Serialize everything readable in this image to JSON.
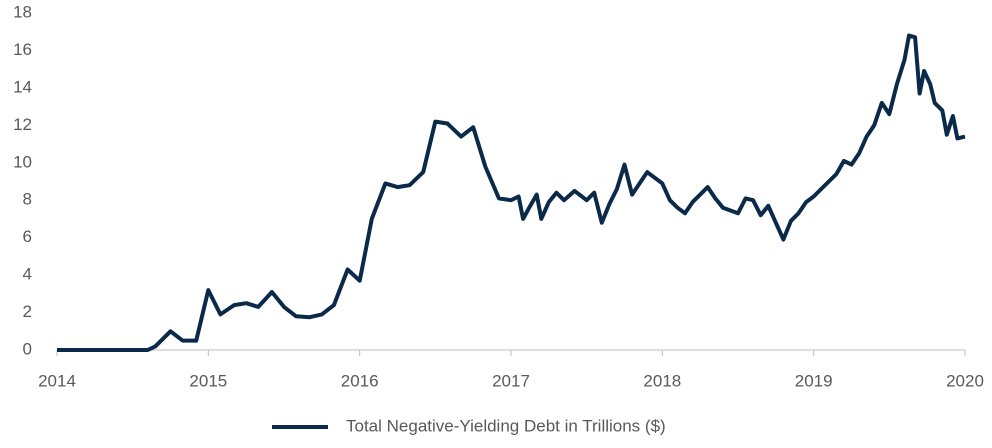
{
  "chart_data": {
    "type": "line",
    "x": [
      2014.0,
      2014.3,
      2014.4,
      2014.6,
      2014.65,
      2014.75,
      2014.83,
      2014.92,
      2015.0,
      2015.08,
      2015.17,
      2015.25,
      2015.33,
      2015.42,
      2015.5,
      2015.58,
      2015.67,
      2015.75,
      2015.83,
      2015.92,
      2016.0,
      2016.08,
      2016.17,
      2016.25,
      2016.33,
      2016.42,
      2016.5,
      2016.58,
      2016.67,
      2016.75,
      2016.83,
      2016.92,
      2017.0,
      2017.05,
      2017.08,
      2017.12,
      2017.17,
      2017.2,
      2017.25,
      2017.3,
      2017.35,
      2017.42,
      2017.5,
      2017.55,
      2017.6,
      2017.65,
      2017.7,
      2017.75,
      2017.8,
      2017.85,
      2017.9,
      2017.95,
      2018.0,
      2018.05,
      2018.1,
      2018.15,
      2018.2,
      2018.25,
      2018.3,
      2018.35,
      2018.4,
      2018.5,
      2018.55,
      2018.6,
      2018.65,
      2018.7,
      2018.75,
      2018.8,
      2018.85,
      2018.9,
      2018.95,
      2019.0,
      2019.05,
      2019.1,
      2019.15,
      2019.2,
      2019.25,
      2019.3,
      2019.35,
      2019.4,
      2019.45,
      2019.5,
      2019.55,
      2019.6,
      2019.63,
      2019.67,
      2019.7,
      2019.73,
      2019.77,
      2019.8,
      2019.85,
      2019.88,
      2019.92,
      2019.95,
      2020.0
    ],
    "series": [
      {
        "name": "Total Negative-Yielding Debt in Trillions ($)",
        "color": "#0b2a4a",
        "values": [
          0,
          0,
          0,
          0,
          0.2,
          1.0,
          0.5,
          0.5,
          3.2,
          1.9,
          2.4,
          2.5,
          2.3,
          3.1,
          2.3,
          1.8,
          1.75,
          1.9,
          2.4,
          4.3,
          3.7,
          7.0,
          8.9,
          8.7,
          8.8,
          9.5,
          12.2,
          12.1,
          11.4,
          11.9,
          9.8,
          8.1,
          8.0,
          8.2,
          7.0,
          7.6,
          8.3,
          7.0,
          7.9,
          8.4,
          8.0,
          8.5,
          8.0,
          8.4,
          6.8,
          7.8,
          8.6,
          9.9,
          8.3,
          8.9,
          9.5,
          9.2,
          8.9,
          8.0,
          7.6,
          7.3,
          7.9,
          8.3,
          8.7,
          8.1,
          7.6,
          7.3,
          8.1,
          8.0,
          7.2,
          7.7,
          6.8,
          5.9,
          6.9,
          7.3,
          7.9,
          8.2,
          8.6,
          9.0,
          9.4,
          10.1,
          9.9,
          10.5,
          11.4,
          12.0,
          13.2,
          12.6,
          14.2,
          15.5,
          16.8,
          16.7,
          13.7,
          14.9,
          14.2,
          13.2,
          12.8,
          11.5,
          12.5,
          11.3,
          11.4
        ]
      }
    ],
    "xlim": [
      2014,
      2020
    ],
    "xticks": [
      2014,
      2015,
      2016,
      2017,
      2018,
      2019,
      2020
    ],
    "ylim": [
      0,
      18
    ],
    "yticks": [
      0,
      2,
      4,
      6,
      8,
      10,
      12,
      14,
      16,
      18
    ],
    "grid": false,
    "legend": "bottom"
  }
}
